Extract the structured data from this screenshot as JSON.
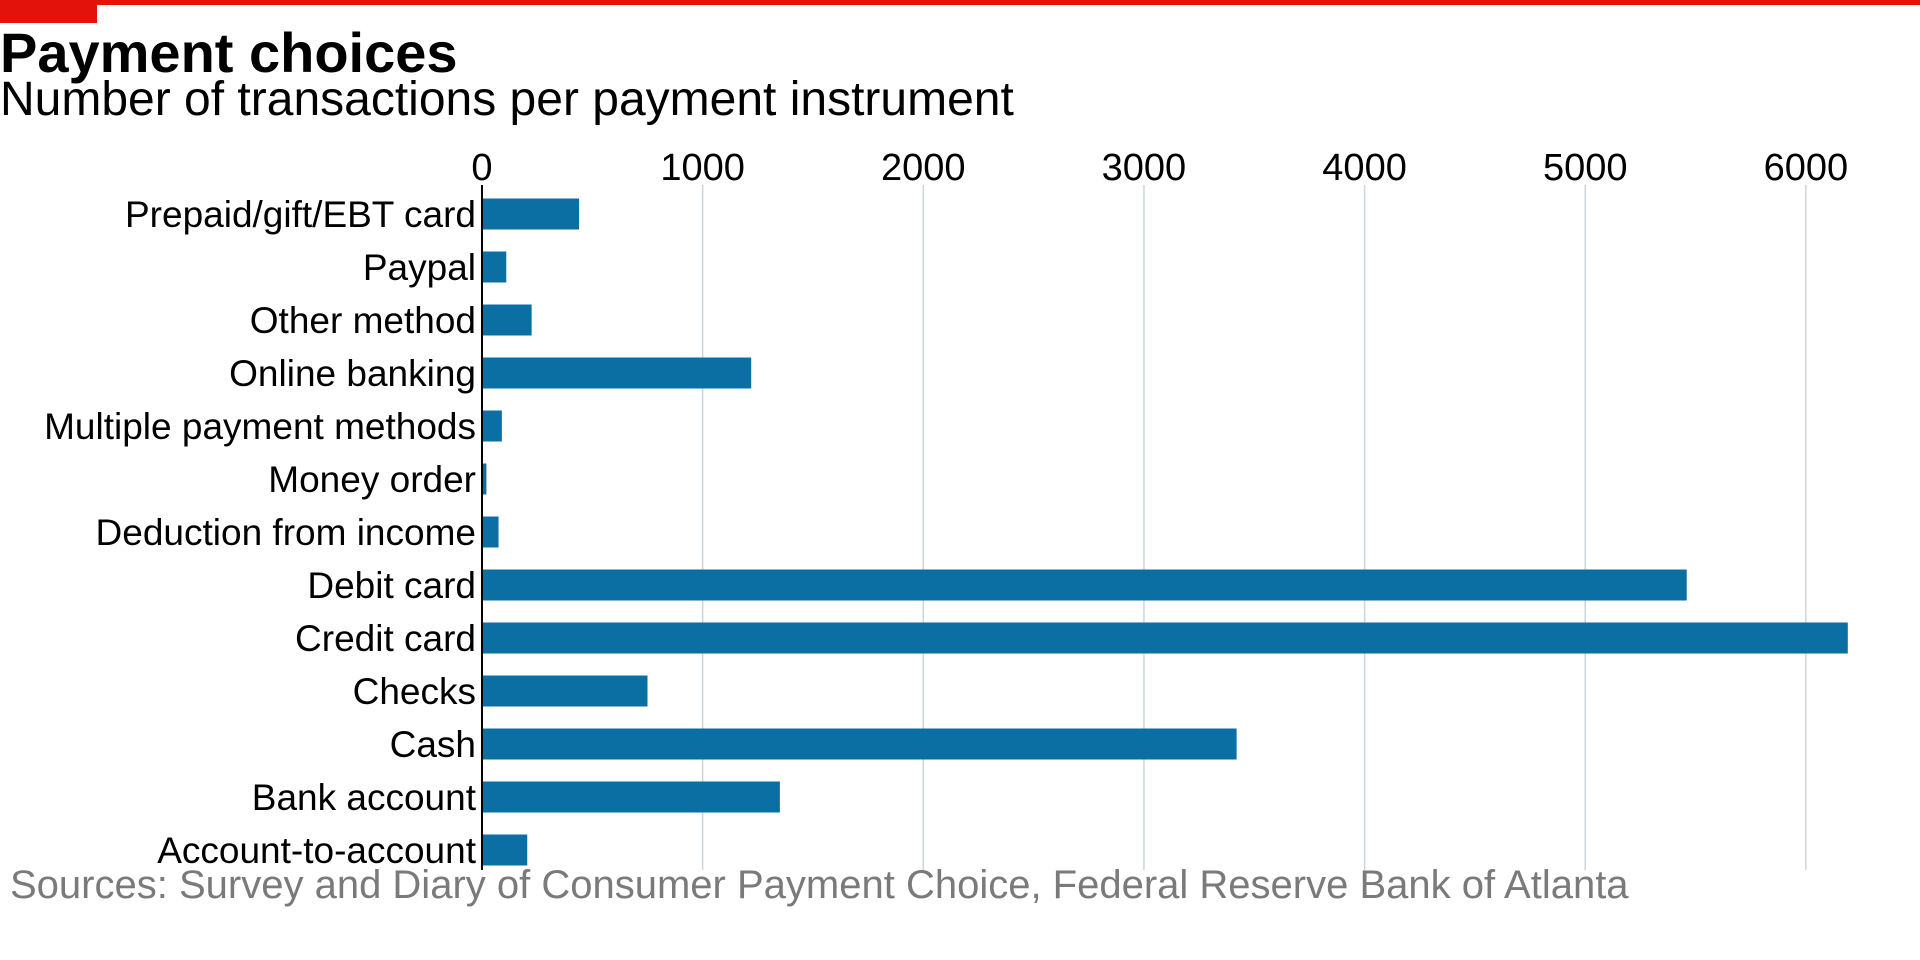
{
  "colors": {
    "accent": "#e3120b",
    "bar": "#0b6fa4",
    "grid": "#c9d6dd",
    "source_text": "#7a7a7a"
  },
  "header": {
    "title": "Payment choices",
    "subtitle": "Number of transactions per payment instrument"
  },
  "footer": {
    "source": "Sources: Survey and Diary of Consumer Payment Choice, Federal Reserve Bank of Atlanta"
  },
  "chart_data": {
    "type": "bar",
    "orientation": "horizontal",
    "title": "Payment choices",
    "subtitle": "Number of transactions per payment instrument",
    "xlabel": "",
    "ylabel": "",
    "xlim": [
      0,
      6200
    ],
    "x_ticks": [
      0,
      1000,
      2000,
      3000,
      4000,
      5000,
      6000
    ],
    "x_axis_position": "top",
    "grid": "vertical",
    "legend": "none",
    "categories": [
      "Prepaid/gift/EBT card",
      "Paypal",
      "Other method",
      "Online banking",
      "Multiple payment methods",
      "Money order",
      "Deduction from income",
      "Debit card",
      "Credit card",
      "Checks",
      "Cash",
      "Bank account",
      "Account-to-account"
    ],
    "values": [
      440,
      110,
      225,
      1220,
      90,
      20,
      75,
      5460,
      6190,
      750,
      3420,
      1350,
      205
    ]
  }
}
